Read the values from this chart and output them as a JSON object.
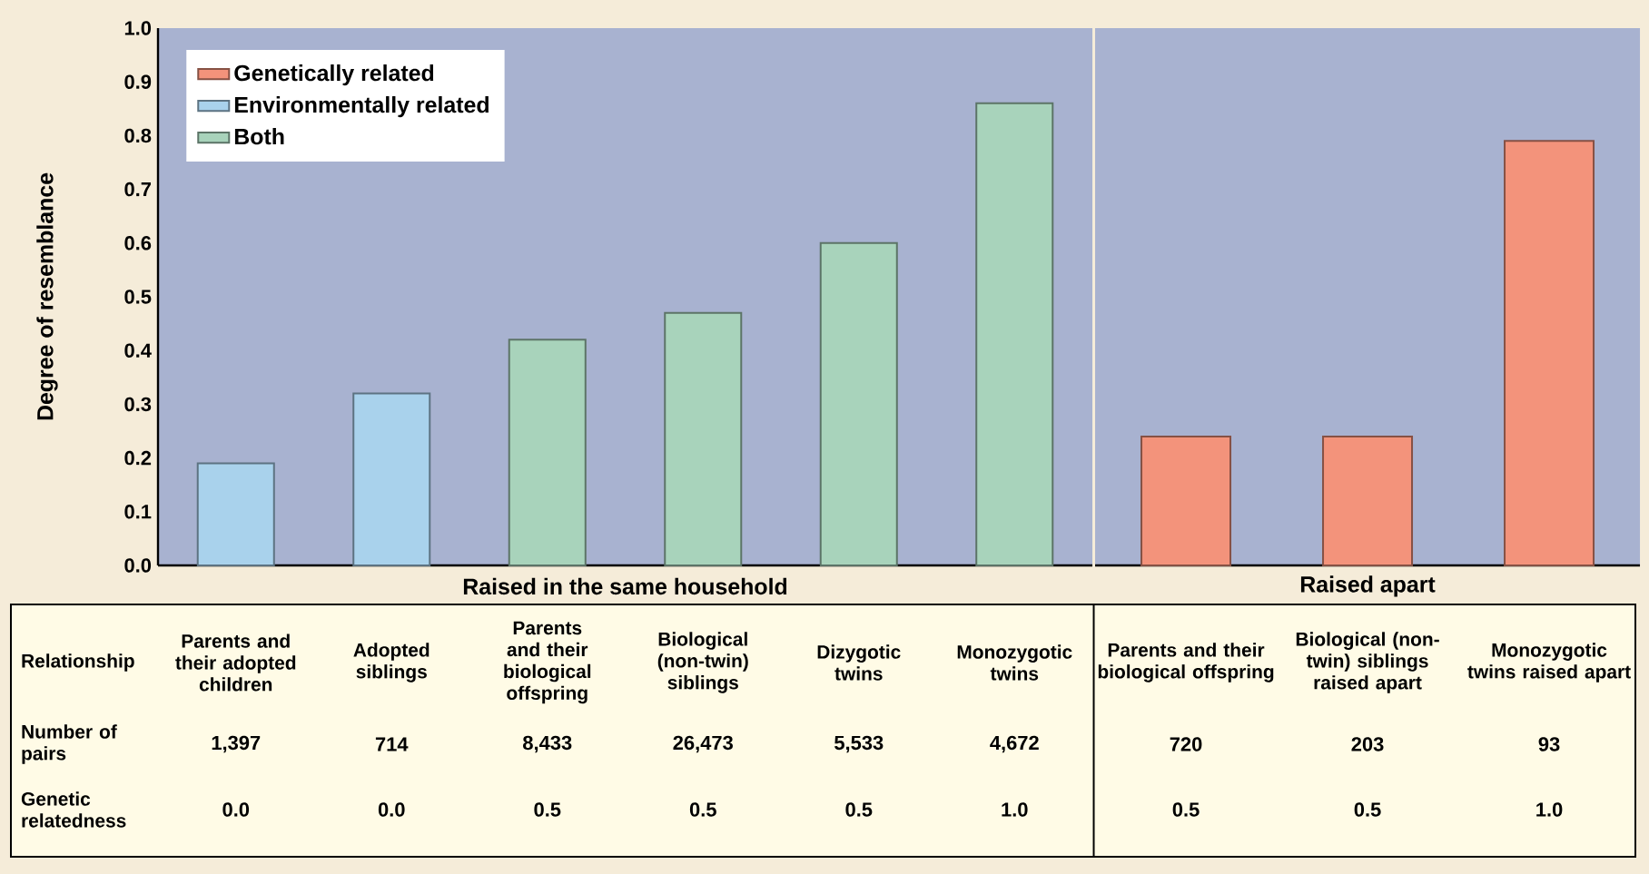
{
  "chart_data": [
    {
      "type": "bar",
      "xlabel": "Raised in the same household",
      "ylabel": "Degree of resemblance",
      "categories": [
        "Parents and their adopted children",
        "Adopted siblings",
        "Parents and their biological offspring",
        "Biological (non-twin) siblings",
        "Dizygotic twins",
        "Monozygotic twins"
      ],
      "series": [
        {
          "name": "Genetically related",
          "color": "#f3937b",
          "values": [
            null,
            null,
            null,
            null,
            null,
            null
          ]
        },
        {
          "name": "Environmentally related",
          "color": "#a9d2ec",
          "values": [
            0.19,
            0.32,
            null,
            null,
            null,
            null
          ]
        },
        {
          "name": "Both",
          "color": "#a8d3bb",
          "values": [
            null,
            null,
            0.42,
            0.47,
            0.6,
            0.86
          ]
        }
      ],
      "ylim": [
        0,
        1
      ],
      "yticks": [
        {
          "value": 0,
          "label": "0.0"
        },
        0.1,
        0.2,
        0.3,
        0.4,
        0.5,
        0.6,
        0.7,
        0.8,
        0.9,
        {
          "value": 1,
          "label": "1.0"
        }
      ],
      "legend": "top left",
      "annotations": [
        "Relationship",
        "Number of pairs",
        "Genetic relatedness",
        "1,397",
        "714",
        "8,433",
        "26,473",
        "5,533",
        "4,672",
        "0.0",
        "0.0",
        "0.5",
        "0.5",
        "0.5",
        "1.0"
      ]
    },
    {
      "type": "bar",
      "xlabel": "Raised apart",
      "categories": [
        "Parents and their biological offspring",
        "Biological (non-twin) siblings raised apart",
        "Monozygotic twins raised apart"
      ],
      "series": [
        {
          "color": "#f3937b",
          "values": [
            0.24,
            0.24,
            0.79
          ]
        }
      ],
      "ylim": [
        0,
        1
      ],
      "tick_labels": "x",
      "annotations": [
        "720",
        "203",
        "93",
        "0.5",
        "0.5",
        "1.0"
      ]
    }
  ]
}
